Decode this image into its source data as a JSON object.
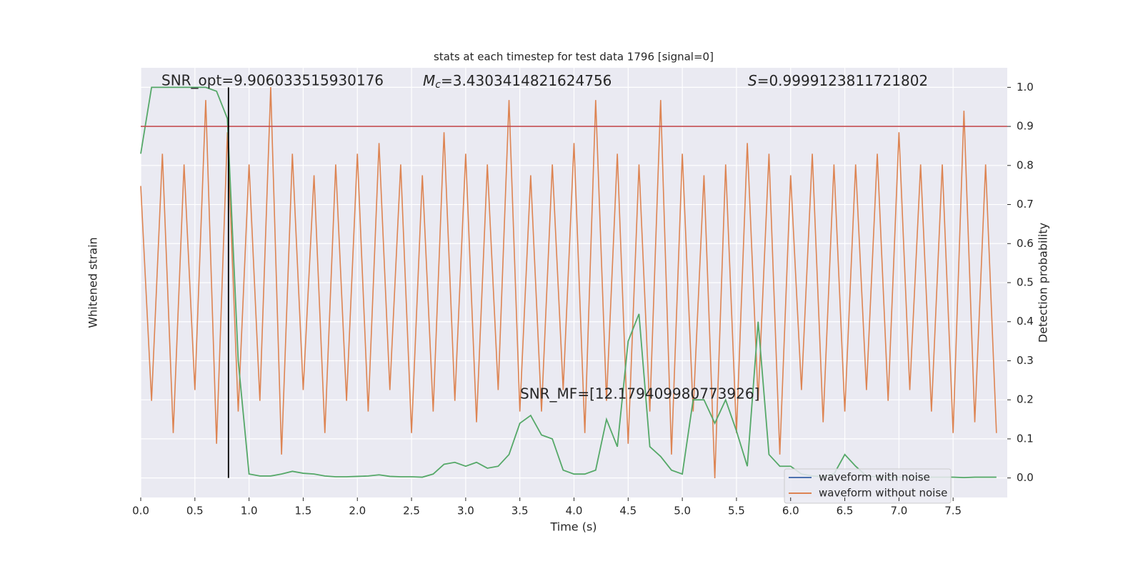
{
  "chart_data": {
    "type": "line",
    "title": "stats at each timestep for test data 1796 [signal=0]",
    "xlabel": "Time (s)",
    "ylabel": "Whitened strain",
    "y2label": "Detection probability",
    "annotations": {
      "snr_opt": "SNR_opt=9.906033515930176",
      "mc": {
        "symbol": "M",
        "sub": "c",
        "text": "=3.4303414821624756"
      },
      "s": {
        "symbol": "S",
        "text": "=0.9999123811721802"
      },
      "snr_mf": "SNR_MF=[12.179409980773926]"
    },
    "xlim": [
      0,
      8
    ],
    "xticks": [
      {
        "value": 0,
        "label": "0.0"
      },
      0.5,
      {
        "value": 1,
        "label": "1.0"
      },
      1.5,
      {
        "value": 2,
        "label": "2.0"
      },
      2.5,
      {
        "value": 3,
        "label": "3.0"
      },
      3.5,
      {
        "value": 4,
        "label": "4.0"
      },
      4.5,
      {
        "value": 5,
        "label": "5.0"
      },
      5.5,
      {
        "value": 6,
        "label": "6.0"
      },
      6.5,
      {
        "value": 7,
        "label": "7.0"
      },
      7.5
    ],
    "ylim": [
      -1,
      1
    ],
    "y2lim": [
      -0.05,
      1.05
    ],
    "y2ticks": [
      {
        "value": 0,
        "label": "0.0"
      },
      0.1,
      0.2,
      0.3,
      0.4,
      0.5,
      0.6,
      0.7,
      0.8,
      0.9,
      {
        "value": 1,
        "label": "1.0"
      }
    ],
    "grid": true,
    "x": [
      0.0,
      0.1,
      0.2,
      0.3,
      0.4,
      0.5,
      0.6,
      0.7,
      0.8,
      0.9,
      1.0,
      1.1,
      1.2,
      1.3,
      1.4,
      1.5,
      1.6,
      1.7,
      1.8,
      1.9,
      2.0,
      2.1,
      2.2,
      2.3,
      2.4,
      2.5,
      2.6,
      2.7,
      2.8,
      2.9,
      3.0,
      3.1,
      3.2,
      3.3,
      3.4,
      3.5,
      3.6,
      3.7,
      3.8,
      3.9,
      4.0,
      4.1,
      4.2,
      4.3,
      4.4,
      4.5,
      4.6,
      4.7,
      4.8,
      4.9,
      5.0,
      5.1,
      5.2,
      5.3,
      5.4,
      5.5,
      5.6,
      5.7,
      5.8,
      5.9,
      6.0,
      6.1,
      6.2,
      6.3,
      6.4,
      6.5,
      6.6,
      6.7,
      6.8,
      6.9,
      7.0,
      7.1,
      7.2,
      7.3,
      7.4,
      7.5,
      7.6,
      7.7,
      7.8,
      7.9
    ],
    "series": [
      {
        "name": "waveform without noise",
        "color": "#dd8452",
        "axis": "y",
        "values": [
          0.45,
          -0.55,
          0.6,
          -0.7,
          0.55,
          -0.5,
          0.85,
          -0.75,
          0.7,
          -0.6,
          0.55,
          -0.55,
          0.91,
          -0.8,
          0.6,
          -0.5,
          0.5,
          -0.7,
          0.55,
          -0.55,
          0.6,
          -0.6,
          0.65,
          -0.5,
          0.55,
          -0.7,
          0.5,
          -0.6,
          0.7,
          -0.55,
          0.6,
          -0.65,
          0.55,
          -0.5,
          0.85,
          -0.6,
          0.5,
          -0.6,
          0.55,
          -0.5,
          0.65,
          -0.7,
          0.85,
          -0.55,
          0.6,
          -0.75,
          0.55,
          -0.6,
          0.85,
          -0.8,
          0.6,
          -0.6,
          0.5,
          -0.91,
          0.55,
          -0.7,
          0.65,
          -0.55,
          0.6,
          -0.8,
          0.5,
          -0.5,
          0.6,
          -0.65,
          0.55,
          -0.6,
          0.55,
          -0.5,
          0.6,
          -0.55,
          0.7,
          -0.5,
          0.55,
          -0.6,
          0.55,
          -0.7,
          0.8,
          -0.65,
          0.55,
          -0.7
        ]
      },
      {
        "name": "detection probability",
        "color": "#55a868",
        "axis": "y2",
        "values": [
          0.83,
          1.0,
          1.0,
          1.0,
          1.0,
          1.0,
          1.0,
          0.99,
          0.92,
          0.3,
          0.01,
          0.005,
          0.005,
          0.01,
          0.017,
          0.012,
          0.01,
          0.005,
          0.003,
          0.003,
          0.004,
          0.005,
          0.008,
          0.004,
          0.003,
          0.003,
          0.002,
          0.01,
          0.035,
          0.04,
          0.03,
          0.04,
          0.025,
          0.03,
          0.06,
          0.14,
          0.16,
          0.11,
          0.1,
          0.02,
          0.01,
          0.01,
          0.02,
          0.15,
          0.08,
          0.35,
          0.42,
          0.08,
          0.055,
          0.02,
          0.01,
          0.2,
          0.2,
          0.14,
          0.2,
          0.12,
          0.03,
          0.4,
          0.06,
          0.03,
          0.03,
          0.01,
          0.005,
          0.003,
          0.01,
          0.06,
          0.03,
          0.005,
          0.003,
          0.002,
          0.002,
          0.002,
          0.002,
          0.002,
          0.002,
          0.002,
          0.001,
          0.002,
          0.002,
          0.002
        ]
      }
    ],
    "legend": [
      {
        "name": "waveform with noise",
        "color": "#4c72b0"
      },
      {
        "name": "waveform without noise",
        "color": "#dd8452"
      }
    ],
    "legend_position": "lower right",
    "hline": {
      "y": 0.9,
      "color": "#c44e52"
    },
    "vline": {
      "x": 0.81,
      "y_range": [
        0,
        1
      ],
      "color": "#000000"
    }
  }
}
